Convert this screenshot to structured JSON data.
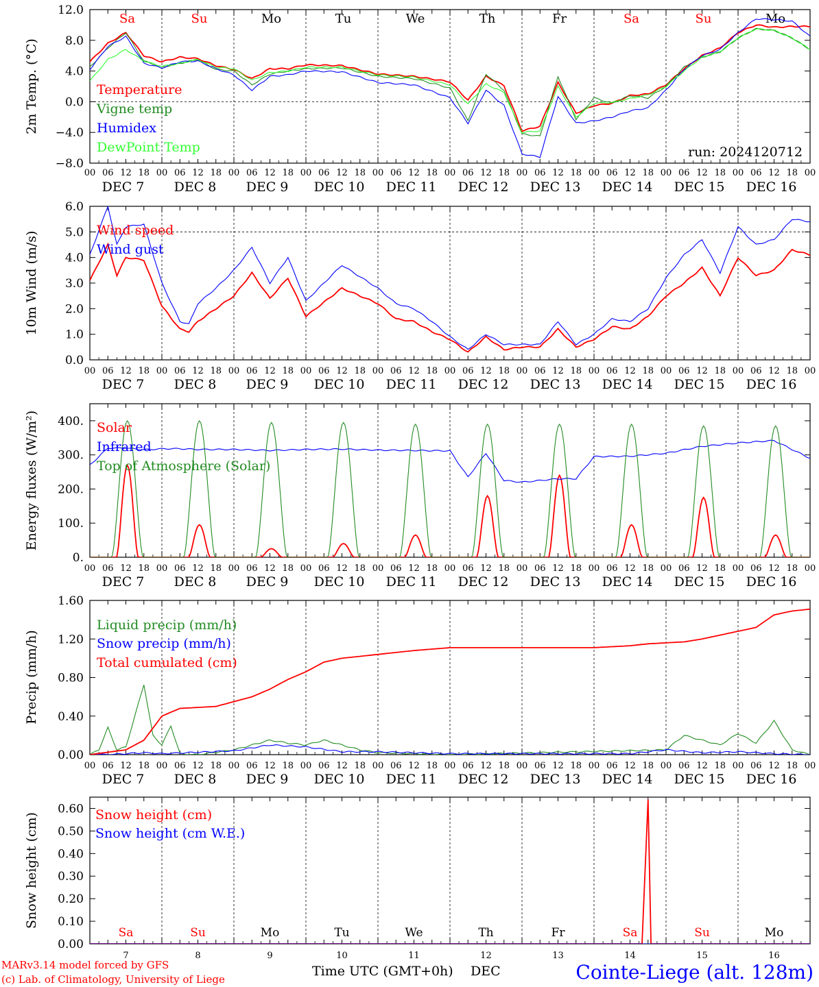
{
  "run_label": "run: 2024120712",
  "footer": {
    "model_line": "MARv3.14 model forced by GFS",
    "copyright_line": "(c) Lab. of Climatology, University of Liege",
    "axis_title": "Time UTC (GMT+0h)",
    "month_label": "DEC",
    "station": "Cointe-Liege (alt. 128m)"
  },
  "days": [
    {
      "abbr": "Sa",
      "weekend": true,
      "date_label": "DEC  7",
      "num": "7"
    },
    {
      "abbr": "Su",
      "weekend": true,
      "date_label": "DEC  8",
      "num": "8"
    },
    {
      "abbr": "Mo",
      "weekend": false,
      "date_label": "DEC  9",
      "num": "9"
    },
    {
      "abbr": "Tu",
      "weekend": false,
      "date_label": "DEC 10",
      "num": "10"
    },
    {
      "abbr": "We",
      "weekend": false,
      "date_label": "DEC 11",
      "num": "11"
    },
    {
      "abbr": "Th",
      "weekend": false,
      "date_label": "DEC 12",
      "num": "12"
    },
    {
      "abbr": "Fr",
      "weekend": false,
      "date_label": "DEC 13",
      "num": "13"
    },
    {
      "abbr": "Sa",
      "weekend": true,
      "date_label": "DEC 14",
      "num": "14"
    },
    {
      "abbr": "Su",
      "weekend": true,
      "date_label": "DEC 15",
      "num": "15"
    },
    {
      "abbr": "Mo",
      "weekend": false,
      "date_label": "DEC 16",
      "num": "16"
    }
  ],
  "hour_ticks": [
    "00",
    "06",
    "12",
    "18"
  ],
  "colors": {
    "red": "#ff0000",
    "green": "#228b22",
    "blue": "#0000ff",
    "lightgreen": "#33ff33",
    "weekend": "#ff0000"
  },
  "chart_data": [
    {
      "type": "line",
      "ylabel": "2m Temp. (°C)",
      "ylim": [
        -8,
        12
      ],
      "ytick_labels": [
        "12.0",
        "8.0",
        "4.0",
        "0.0",
        "−4.0",
        "−8.0"
      ],
      "dashed_reference": 0,
      "x_unit": "hours since 2024-12-07 00 UTC",
      "series": [
        {
          "name": "Temperature",
          "color": "red",
          "x": [
            0,
            6,
            12,
            18,
            24,
            30,
            36,
            42,
            48,
            54,
            60,
            66,
            72,
            84,
            96,
            108,
            120,
            126,
            132,
            138,
            144,
            150,
            156,
            162,
            168,
            174,
            180,
            186,
            192,
            198,
            204,
            210,
            216,
            222,
            228,
            234,
            240
          ],
          "values": [
            5.2,
            7.6,
            9.0,
            6.0,
            5.2,
            5.8,
            5.6,
            4.7,
            4.2,
            3.0,
            4.3,
            4.3,
            4.8,
            4.7,
            3.6,
            3.3,
            2.6,
            0.2,
            3.3,
            2.1,
            -3.8,
            -3.2,
            2.5,
            -1.5,
            -0.5,
            -0.2,
            0.8,
            1.0,
            2.2,
            4.3,
            6.0,
            7.0,
            9.0,
            10.0,
            9.7,
            9.8,
            9.8
          ]
        },
        {
          "name": "Vigne temp",
          "color": "green",
          "x": [
            0,
            6,
            12,
            18,
            24,
            30,
            36,
            42,
            48,
            54,
            60,
            66,
            72,
            84,
            96,
            108,
            120,
            126,
            132,
            138,
            144,
            150,
            156,
            162,
            168,
            174,
            180,
            186,
            192,
            198,
            204,
            210,
            216,
            222,
            228,
            234,
            240
          ],
          "values": [
            4.5,
            7.0,
            9.0,
            5.3,
            4.5,
            5.0,
            5.5,
            4.2,
            4.0,
            2.2,
            3.6,
            4.0,
            4.3,
            4.4,
            3.3,
            3.0,
            1.8,
            -2.5,
            3.6,
            1.5,
            -4.2,
            -4.5,
            3.3,
            -2.3,
            0.5,
            -0.2,
            0.8,
            0.5,
            2.0,
            4.5,
            5.8,
            6.5,
            8.3,
            9.5,
            9.3,
            8.3,
            6.8
          ]
        },
        {
          "name": "Humidex",
          "color": "blue",
          "x": [
            0,
            6,
            12,
            18,
            24,
            30,
            36,
            42,
            48,
            54,
            60,
            66,
            72,
            84,
            96,
            108,
            120,
            126,
            132,
            138,
            144,
            150,
            156,
            162,
            168,
            174,
            180,
            186,
            192,
            198,
            204,
            210,
            216,
            222,
            228,
            234,
            240
          ],
          "values": [
            4.2,
            7.2,
            8.5,
            5.0,
            4.4,
            5.2,
            5.3,
            4.3,
            3.5,
            1.5,
            3.3,
            3.5,
            4.0,
            3.9,
            2.5,
            2.2,
            0.5,
            -2.8,
            1.5,
            -0.5,
            -6.8,
            -7.2,
            0.7,
            -2.8,
            -2.5,
            -2.0,
            -1.2,
            -0.8,
            1.5,
            4.2,
            6.0,
            6.8,
            9.0,
            10.8,
            10.7,
            10.5,
            8.5
          ]
        },
        {
          "name": "DewPoint Temp",
          "color": "lightgreen",
          "x": [
            0,
            6,
            12,
            18,
            24,
            30,
            36,
            42,
            48,
            54,
            60,
            66,
            72,
            84,
            96,
            108,
            120,
            126,
            132,
            138,
            144,
            150,
            156,
            162,
            168,
            174,
            180,
            186,
            192,
            198,
            204,
            210,
            216,
            222,
            228,
            234,
            240
          ],
          "values": [
            2.7,
            5.5,
            6.8,
            5.3,
            4.6,
            5.0,
            5.5,
            4.5,
            4.3,
            2.8,
            3.8,
            4.0,
            4.5,
            4.5,
            3.5,
            3.2,
            2.2,
            -0.3,
            2.3,
            1.2,
            -4.0,
            -3.8,
            2.0,
            -2.0,
            -0.2,
            -0.1,
            0.4,
            0.9,
            2.0,
            4.0,
            5.8,
            6.5,
            8.3,
            9.5,
            9.3,
            8.3,
            6.8
          ]
        }
      ],
      "legend_placement": "left, middle"
    },
    {
      "type": "line",
      "ylabel": "10m Wind (m/s)",
      "ylim": [
        0,
        6
      ],
      "ytick_labels": [
        "6.0",
        "5.0",
        "4.0",
        "3.0",
        "2.0",
        "1.0",
        "0.0"
      ],
      "dashed_reference": 5,
      "x_unit": "hours since 2024-12-07 00 UTC",
      "series": [
        {
          "name": "Wind speed",
          "color": "red",
          "x": [
            0,
            6,
            9,
            12,
            18,
            24,
            30,
            33,
            36,
            42,
            48,
            54,
            60,
            66,
            72,
            84,
            96,
            102,
            108,
            114,
            120,
            126,
            132,
            138,
            144,
            150,
            156,
            162,
            168,
            174,
            180,
            186,
            192,
            198,
            204,
            210,
            216,
            222,
            228,
            234,
            240
          ],
          "values": [
            3.1,
            4.5,
            3.3,
            4.0,
            3.9,
            2.1,
            1.2,
            1.1,
            1.5,
            2.0,
            2.5,
            3.4,
            2.4,
            3.2,
            1.7,
            2.8,
            2.2,
            1.6,
            1.5,
            1.1,
            0.8,
            0.3,
            0.9,
            0.4,
            0.5,
            0.5,
            1.2,
            0.5,
            0.8,
            1.3,
            1.2,
            1.7,
            2.5,
            3.0,
            3.6,
            2.5,
            4.0,
            3.3,
            3.5,
            4.3,
            4.1
          ]
        },
        {
          "name": "Wind gust",
          "color": "blue",
          "x": [
            0,
            6,
            9,
            12,
            18,
            24,
            30,
            33,
            36,
            42,
            48,
            54,
            60,
            66,
            72,
            84,
            96,
            102,
            108,
            114,
            120,
            126,
            132,
            138,
            144,
            150,
            156,
            162,
            168,
            174,
            180,
            186,
            192,
            198,
            204,
            210,
            216,
            222,
            228,
            234,
            240
          ],
          "values": [
            4.1,
            6.0,
            4.5,
            5.2,
            5.3,
            3.0,
            1.5,
            1.4,
            2.2,
            2.8,
            3.5,
            4.4,
            3.0,
            4.0,
            2.3,
            3.7,
            2.8,
            2.2,
            2.0,
            1.5,
            0.9,
            0.4,
            1.0,
            0.6,
            0.6,
            0.6,
            1.5,
            0.6,
            1.0,
            1.6,
            1.5,
            2.0,
            3.2,
            4.1,
            4.7,
            3.4,
            5.2,
            4.5,
            4.7,
            5.5,
            5.4
          ]
        }
      ],
      "legend_placement": "left, upper"
    },
    {
      "type": "line",
      "ylabel": "Energy fluxes (W/m²)",
      "ylim": [
        0,
        450
      ],
      "ytick_labels": [
        "400.",
        "300.",
        "200.",
        "100.",
        "0."
      ],
      "x_unit": "hours since 2024-12-07 00 UTC",
      "series": [
        {
          "name": "Solar",
          "color": "red",
          "daily_peak_hour": 12.5,
          "daily_peaks": [
            270,
            95,
            25,
            40,
            65,
            180,
            240,
            95,
            175,
            65
          ]
        },
        {
          "name": "Infrared",
          "color": "blue",
          "x": [
            0,
            6,
            12,
            18,
            24,
            30,
            36,
            48,
            60,
            72,
            84,
            96,
            120,
            126,
            132,
            138,
            144,
            156,
            162,
            168,
            180,
            192,
            204,
            216,
            228,
            240
          ],
          "values": [
            270,
            320,
            320,
            315,
            318,
            318,
            316,
            316,
            313,
            316,
            317,
            314,
            312,
            235,
            305,
            225,
            220,
            230,
            230,
            295,
            296,
            305,
            325,
            335,
            342,
            290
          ]
        },
        {
          "name": "Top of Atmosphere (Solar)",
          "color": "green",
          "daily_peak_hour": 12.5,
          "daily_peaks": [
            400,
            400,
            395,
            395,
            390,
            390,
            390,
            390,
            385,
            385
          ]
        }
      ],
      "legend_placement": "left, upper"
    },
    {
      "type": "line",
      "ylabel": "Precip (mm/h)",
      "ylim": [
        0,
        1.6
      ],
      "ytick_labels": [
        "1.60",
        "1.20",
        "0.80",
        "0.40",
        "0.00"
      ],
      "x_unit": "hours since 2024-12-07 00 UTC",
      "series": [
        {
          "name": "Liquid precip (mm/h)",
          "color": "green",
          "x": [
            0,
            3,
            6,
            9,
            12,
            15,
            18,
            21,
            24,
            27,
            30,
            33,
            36,
            48,
            54,
            60,
            66,
            72,
            78,
            84,
            90,
            96,
            108,
            120,
            192,
            198,
            210,
            216,
            222,
            228,
            234,
            240
          ],
          "values": [
            0,
            0.05,
            0.28,
            0.05,
            0.08,
            0.4,
            0.73,
            0.2,
            0.1,
            0.3,
            0.01,
            0,
            0,
            0.05,
            0.1,
            0.15,
            0.12,
            0.1,
            0.15,
            0.1,
            0.05,
            0.02,
            0.01,
            0,
            0.05,
            0.2,
            0.1,
            0.22,
            0.12,
            0.35,
            0.05,
            0
          ]
        },
        {
          "name": "Snow precip (mm/h)",
          "color": "blue",
          "x": [
            0,
            6,
            12,
            18,
            24,
            48,
            60,
            72,
            84,
            96,
            108,
            120,
            168,
            180,
            192,
            204,
            216,
            228,
            240
          ],
          "values": [
            0,
            0,
            0.01,
            0.02,
            0.01,
            0.04,
            0.1,
            0.08,
            0.03,
            0.03,
            0.02,
            0.01,
            0.01,
            0.01,
            0.05,
            0.02,
            0.03,
            0.01,
            0
          ]
        },
        {
          "name": "Total cumulated (cm)",
          "color": "red",
          "x": [
            0,
            12,
            18,
            24,
            30,
            36,
            42,
            48,
            54,
            60,
            66,
            72,
            78,
            84,
            90,
            96,
            108,
            120,
            132,
            144,
            156,
            168,
            174,
            180,
            186,
            192,
            198,
            204,
            210,
            216,
            222,
            228,
            234,
            240
          ],
          "values": [
            0,
            0.05,
            0.15,
            0.4,
            0.48,
            0.49,
            0.5,
            0.55,
            0.6,
            0.68,
            0.78,
            0.86,
            0.96,
            1.0,
            1.02,
            1.04,
            1.08,
            1.11,
            1.11,
            1.11,
            1.11,
            1.11,
            1.12,
            1.13,
            1.15,
            1.16,
            1.17,
            1.2,
            1.24,
            1.28,
            1.32,
            1.45,
            1.49,
            1.51
          ]
        }
      ],
      "legend_placement": "left, upper"
    },
    {
      "type": "line",
      "ylabel": "Snow height (cm)",
      "ylim": [
        0,
        0.65
      ],
      "ytick_labels": [
        "0.60",
        "0.50",
        "0.40",
        "0.30",
        "0.20",
        "0.10",
        "0.00"
      ],
      "x_unit": "hours since 2024-12-07 00 UTC",
      "series": [
        {
          "name": "Snow height (cm)",
          "color": "red",
          "x": [
            0,
            184,
            186,
            187,
            240
          ],
          "values": [
            0,
            0,
            0.64,
            0,
            0
          ]
        },
        {
          "name": "Snow height (cm W.E.)",
          "color": "blue",
          "x": [
            0,
            240
          ],
          "values": [
            0,
            0
          ]
        }
      ],
      "legend_placement": "left, upper"
    }
  ]
}
